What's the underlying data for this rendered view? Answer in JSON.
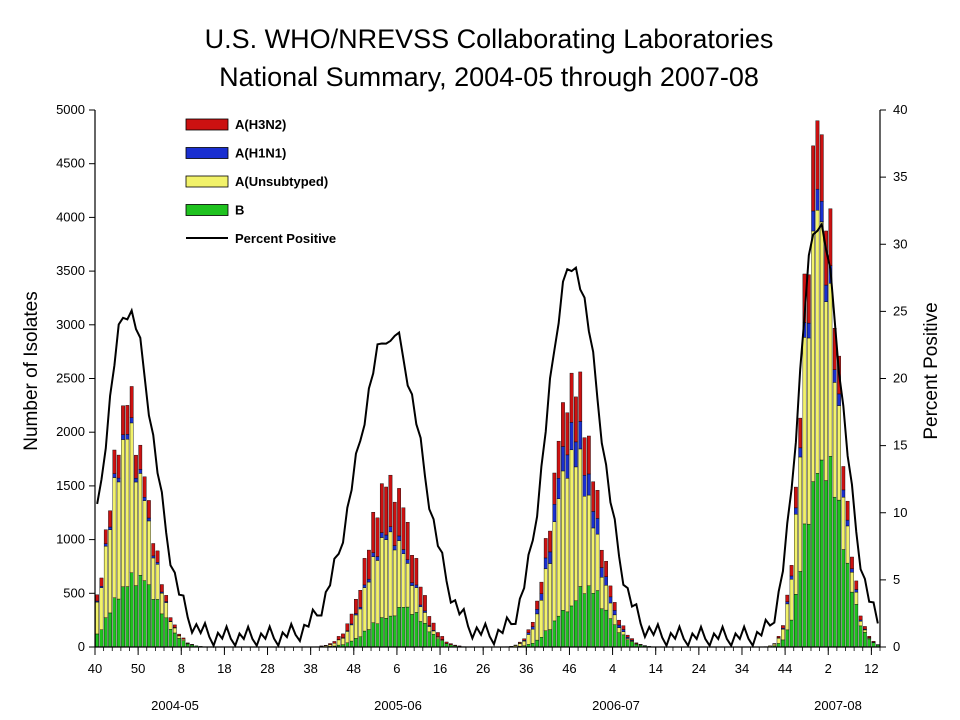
{
  "chart_data": {
    "type": "bar",
    "title": "U.S. WHO/NREVSS Collaborating Laboratories",
    "subtitle": "National Summary, 2004-05 through 2007-08",
    "ylabel": "Number of Isolates",
    "y2label": "Percent Positive",
    "ylim": [
      0,
      5000
    ],
    "y2lim": [
      0,
      40
    ],
    "yticks": [
      "0",
      "500",
      "1000",
      "1500",
      "2000",
      "2500",
      "3000",
      "3500",
      "4000",
      "4500",
      "5000"
    ],
    "y2ticks": [
      "0",
      "5",
      "10",
      "15",
      "20",
      "25",
      "30",
      "35",
      "40"
    ],
    "xticks": [
      "40",
      "50",
      "8",
      "18",
      "28",
      "38",
      "48",
      "6",
      "16",
      "26",
      "36",
      "46",
      "4",
      "14",
      "24",
      "34",
      "44",
      "2",
      "12"
    ],
    "seasons": [
      "2004-05",
      "2005-06",
      "2006-07",
      "2007-08"
    ],
    "legend": [
      {
        "label": "A(H3N2)",
        "color": "#cc1111"
      },
      {
        "label": "A(H1N1)",
        "color": "#1a2fd0"
      },
      {
        "label": "A(Unsubtyped)",
        "color": "#f2f26a"
      },
      {
        "label": "B",
        "color": "#1fc21f"
      },
      {
        "label": "Percent Positive",
        "color": "#000000"
      }
    ],
    "series_names": [
      "A(H3N2)",
      "A(H1N1)",
      "A(Unsubtyped)",
      "B"
    ],
    "colors": [
      "#cc1111",
      "#1a2fd0",
      "#f2f26a",
      "#1fc21f"
    ],
    "total_peaks": [
      {
        "week": 7,
        "value": 2250
      },
      {
        "week": 68,
        "value": 1600
      },
      {
        "week": 110,
        "value": 2550
      },
      {
        "week": 167,
        "value": 4900
      }
    ],
    "percent_positive_peaks": [
      {
        "week": 7,
        "value": 24.4
      },
      {
        "week": 68,
        "value": 22.8
      },
      {
        "week": 110,
        "value": 28.0
      },
      {
        "week": 167,
        "value": 31.0
      }
    ],
    "weeks": 182
  }
}
